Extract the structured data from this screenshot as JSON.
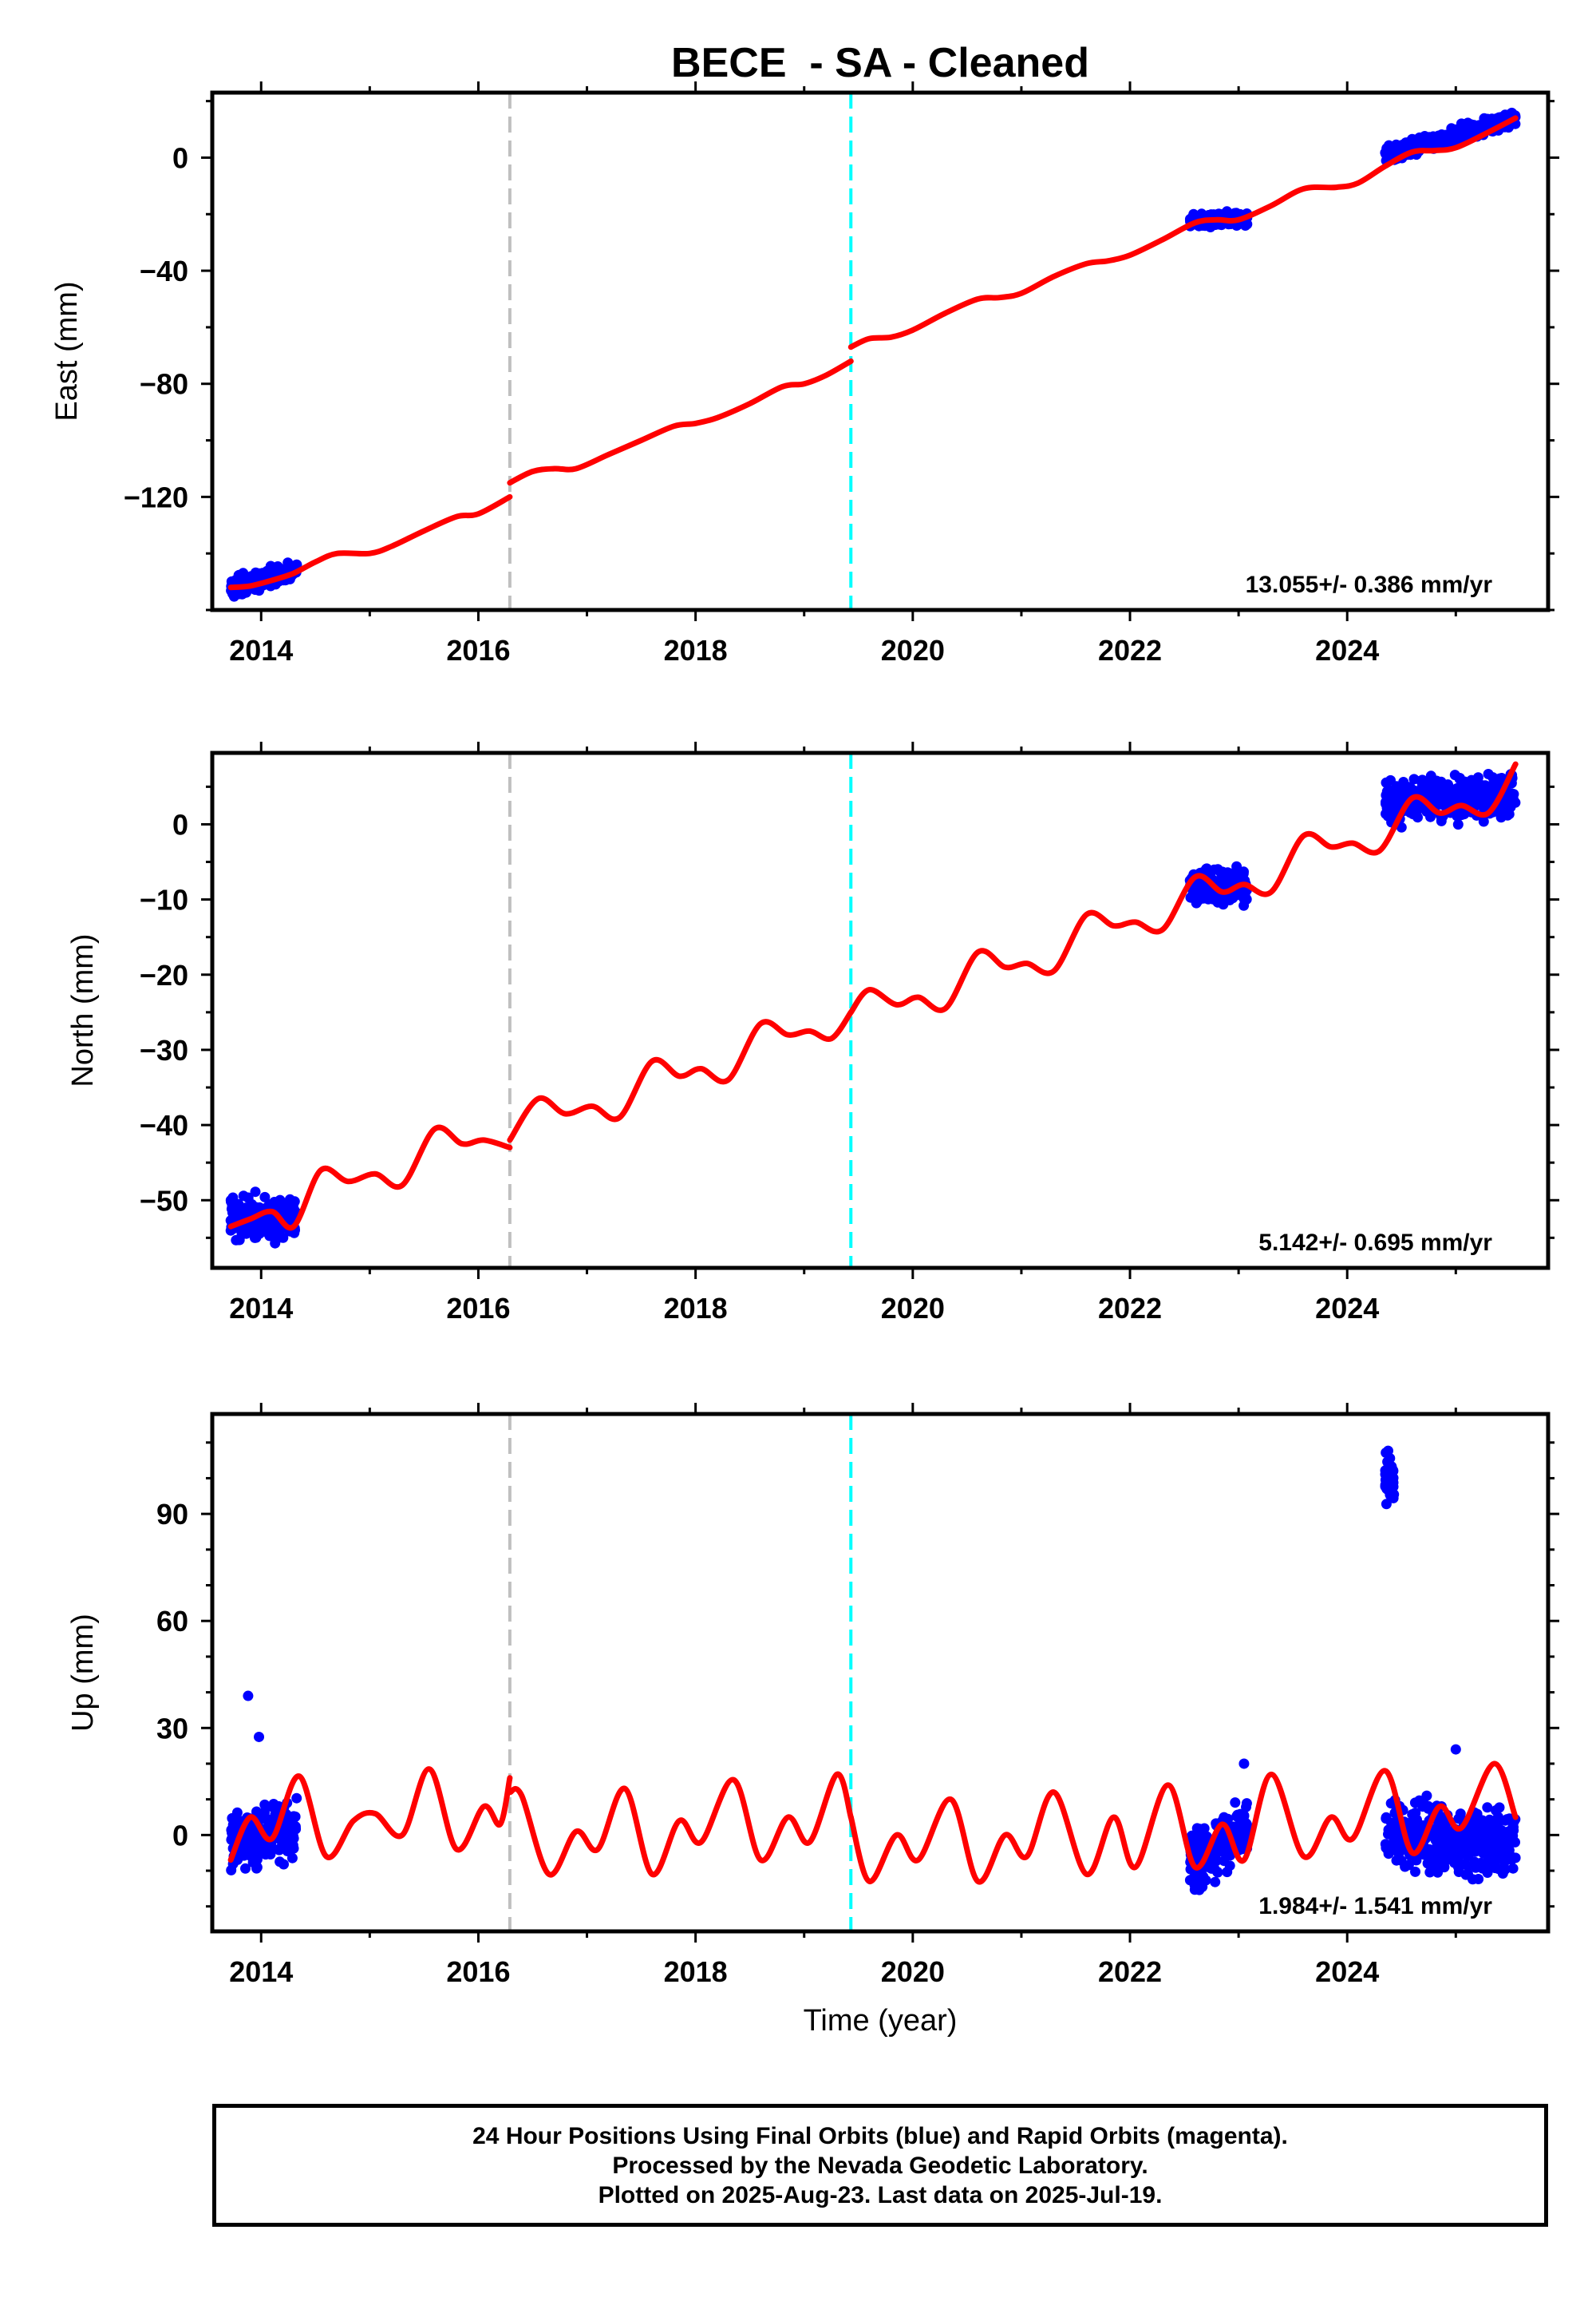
{
  "title": "BECE  - SA - Cleaned",
  "xlabel": "Time (year)",
  "footer": {
    "line1": "24 Hour Positions Using Final Orbits (blue) and Rapid Orbits (magenta).",
    "line2": "Processed by the Nevada Geodetic Laboratory.",
    "line3": "Plotted on 2025-Aug-23. Last data on 2025-Jul-19."
  },
  "colors": {
    "data": "#0000ff",
    "model": "#ff0000",
    "step_gray": "#c0c0c0",
    "step_cyan": "#00ffff"
  },
  "chart_data": [
    {
      "type": "scatter",
      "component": "East",
      "ylabel": "East (mm)",
      "xlim": [
        2013.55,
        2025.85
      ],
      "ylim": [
        -160,
        23
      ],
      "xticks": [
        2014,
        2016,
        2018,
        2020,
        2022,
        2024
      ],
      "yticks": [
        0,
        -40,
        -80,
        -120
      ],
      "rate_label": "13.055+/- 0.386 mm/yr",
      "step_lines": [
        {
          "x": 2016.29,
          "color": "gray"
        },
        {
          "x": 2019.43,
          "color": "cyan"
        }
      ],
      "data_segments": [
        {
          "x0": 2013.72,
          "x1": 2014.33,
          "y0": -152,
          "y1": -146,
          "spread": 3
        },
        {
          "x0": 2022.55,
          "x1": 2023.08,
          "y0": -22.5,
          "y1": -21.5,
          "spread": 2
        },
        {
          "x0": 2024.35,
          "x1": 2025.55,
          "y0": 1,
          "y1": 14,
          "spread": 2.5
        }
      ],
      "model_segments": [
        [
          [
            2013.72,
            -152
          ],
          [
            2013.9,
            -151.5
          ],
          [
            2014.1,
            -149.5
          ],
          [
            2014.3,
            -147
          ],
          [
            2014.5,
            -143
          ],
          [
            2014.7,
            -140
          ],
          [
            2015.0,
            -140
          ],
          [
            2015.2,
            -137.5
          ],
          [
            2015.5,
            -132
          ],
          [
            2015.8,
            -127
          ],
          [
            2016.0,
            -126
          ],
          [
            2016.29,
            -120
          ]
        ],
        [
          [
            2016.29,
            -115
          ],
          [
            2016.5,
            -111
          ],
          [
            2016.7,
            -110
          ],
          [
            2016.9,
            -110
          ],
          [
            2017.2,
            -105
          ],
          [
            2017.5,
            -100
          ],
          [
            2017.8,
            -95
          ],
          [
            2018.0,
            -94
          ],
          [
            2018.2,
            -92
          ],
          [
            2018.5,
            -87
          ],
          [
            2018.8,
            -81
          ],
          [
            2019.0,
            -80
          ],
          [
            2019.2,
            -77
          ],
          [
            2019.43,
            -72
          ]
        ],
        [
          [
            2019.43,
            -67
          ],
          [
            2019.6,
            -64
          ],
          [
            2019.8,
            -63.5
          ],
          [
            2020.0,
            -61
          ],
          [
            2020.3,
            -55
          ],
          [
            2020.6,
            -50
          ],
          [
            2020.8,
            -49.5
          ],
          [
            2021.0,
            -48
          ],
          [
            2021.3,
            -42
          ],
          [
            2021.6,
            -37.5
          ],
          [
            2021.8,
            -36.5
          ],
          [
            2022.0,
            -34.5
          ],
          [
            2022.3,
            -29
          ],
          [
            2022.6,
            -23
          ],
          [
            2022.8,
            -22
          ],
          [
            2023.0,
            -22
          ],
          [
            2023.3,
            -17
          ],
          [
            2023.6,
            -11
          ],
          [
            2023.9,
            -10.5
          ],
          [
            2024.1,
            -9
          ],
          [
            2024.35,
            -3
          ],
          [
            2024.6,
            2
          ],
          [
            2024.8,
            2.5
          ],
          [
            2025.0,
            3.5
          ],
          [
            2025.3,
            9
          ],
          [
            2025.55,
            14
          ]
        ]
      ]
    },
    {
      "type": "scatter",
      "component": "North",
      "ylabel": "North (mm)",
      "xlim": [
        2013.55,
        2025.85
      ],
      "ylim": [
        -59,
        9.5
      ],
      "xticks": [
        2014,
        2016,
        2018,
        2020,
        2022,
        2024
      ],
      "yticks": [
        0,
        -10,
        -20,
        -30,
        -40,
        -50
      ],
      "rate_label": "5.142+/- 0.695 mm/yr",
      "step_lines": [
        {
          "x": 2016.29,
          "color": "gray"
        },
        {
          "x": 2019.43,
          "color": "cyan"
        }
      ],
      "data_segments": [
        {
          "x0": 2013.72,
          "x1": 2014.33,
          "y0": -52.5,
          "y1": -52,
          "spread": 2.5
        },
        {
          "x0": 2022.55,
          "x1": 2023.08,
          "y0": -8,
          "y1": -8,
          "spread": 2
        },
        {
          "x0": 2024.35,
          "x1": 2025.55,
          "y0": 3,
          "y1": 4,
          "spread": 2.5
        }
      ],
      "model_segments": [
        [
          [
            2013.72,
            -53.5
          ],
          [
            2013.9,
            -52.5
          ],
          [
            2014.1,
            -51.5
          ],
          [
            2014.3,
            -53.5
          ],
          [
            2014.55,
            -46
          ],
          [
            2014.8,
            -47.5
          ],
          [
            2015.05,
            -46.5
          ],
          [
            2015.3,
            -48
          ],
          [
            2015.6,
            -40.5
          ],
          [
            2015.85,
            -42.5
          ],
          [
            2016.05,
            -42
          ],
          [
            2016.29,
            -43
          ]
        ],
        [
          [
            2016.29,
            -42
          ],
          [
            2016.55,
            -36.5
          ],
          [
            2016.8,
            -38.5
          ],
          [
            2017.05,
            -37.5
          ],
          [
            2017.3,
            -39
          ],
          [
            2017.6,
            -31.5
          ],
          [
            2017.85,
            -33.5
          ],
          [
            2018.05,
            -32.5
          ],
          [
            2018.3,
            -34
          ],
          [
            2018.6,
            -26.5
          ],
          [
            2018.85,
            -28
          ],
          [
            2019.05,
            -27.5
          ],
          [
            2019.25,
            -28.5
          ],
          [
            2019.43,
            -25
          ]
        ],
        [
          [
            2019.43,
            -25
          ],
          [
            2019.6,
            -22
          ],
          [
            2019.85,
            -24
          ],
          [
            2020.05,
            -23
          ],
          [
            2020.3,
            -24.5
          ],
          [
            2020.6,
            -17
          ],
          [
            2020.85,
            -19
          ],
          [
            2021.05,
            -18.5
          ],
          [
            2021.3,
            -19.5
          ],
          [
            2021.6,
            -12
          ],
          [
            2021.85,
            -13.5
          ],
          [
            2022.05,
            -13
          ],
          [
            2022.3,
            -14
          ],
          [
            2022.6,
            -7
          ],
          [
            2022.85,
            -9
          ],
          [
            2023.05,
            -8
          ],
          [
            2023.3,
            -9
          ],
          [
            2023.6,
            -1.5
          ],
          [
            2023.85,
            -3
          ],
          [
            2024.05,
            -2.5
          ],
          [
            2024.3,
            -3.5
          ],
          [
            2024.6,
            3.5
          ],
          [
            2024.85,
            1.5
          ],
          [
            2025.05,
            2.5
          ],
          [
            2025.3,
            1.5
          ],
          [
            2025.55,
            8
          ]
        ]
      ]
    },
    {
      "type": "scatter",
      "component": "Up",
      "ylabel": "Up (mm)",
      "xlim": [
        2013.55,
        2025.85
      ],
      "ylim": [
        -27,
        118
      ],
      "xticks": [
        2014,
        2016,
        2018,
        2020,
        2022,
        2024
      ],
      "yticks": [
        0,
        30,
        60,
        90
      ],
      "rate_label": "1.984+/- 1.541 mm/yr",
      "step_lines": [
        {
          "x": 2016.29,
          "color": "gray"
        },
        {
          "x": 2019.43,
          "color": "cyan"
        }
      ],
      "data_segments": [
        {
          "x0": 2013.72,
          "x1": 2014.33,
          "y0": -2,
          "y1": 2,
          "spread": 7
        },
        {
          "x0": 2022.55,
          "x1": 2023.08,
          "y0": -8,
          "y1": 2,
          "spread": 8
        },
        {
          "x0": 2024.35,
          "x1": 2025.55,
          "y0": 0,
          "y1": -3,
          "spread": 8
        },
        {
          "x0": 2024.35,
          "x1": 2024.43,
          "y0": 100,
          "y1": 100,
          "spread": 6
        }
      ],
      "outliers": [
        [
          2013.88,
          39
        ],
        [
          2013.98,
          27.5
        ],
        [
          2023.05,
          20
        ],
        [
          2025.0,
          24
        ]
      ],
      "model_segments": [
        [
          [
            2013.72,
            -7
          ],
          [
            2013.9,
            5
          ],
          [
            2014.1,
            -1
          ],
          [
            2014.35,
            16.5
          ],
          [
            2014.6,
            -6
          ],
          [
            2014.85,
            4
          ],
          [
            2015.05,
            6
          ],
          [
            2015.3,
            0
          ],
          [
            2015.55,
            18.5
          ],
          [
            2015.8,
            -4
          ],
          [
            2016.05,
            8
          ],
          [
            2016.2,
            3
          ],
          [
            2016.29,
            16
          ]
        ],
        [
          [
            2016.29,
            12
          ],
          [
            2016.4,
            11
          ],
          [
            2016.65,
            -11
          ],
          [
            2016.9,
            1
          ],
          [
            2017.1,
            -4
          ],
          [
            2017.35,
            13
          ],
          [
            2017.6,
            -11
          ],
          [
            2017.85,
            4
          ],
          [
            2018.05,
            -2
          ],
          [
            2018.35,
            15.5
          ],
          [
            2018.6,
            -7
          ],
          [
            2018.85,
            5
          ],
          [
            2019.05,
            -2
          ],
          [
            2019.3,
            17
          ],
          [
            2019.43,
            5
          ]
        ],
        [
          [
            2019.43,
            5
          ],
          [
            2019.6,
            -13
          ],
          [
            2019.85,
            0
          ],
          [
            2020.05,
            -7
          ],
          [
            2020.35,
            10
          ],
          [
            2020.6,
            -13
          ],
          [
            2020.85,
            0
          ],
          [
            2021.05,
            -6
          ],
          [
            2021.3,
            12
          ],
          [
            2021.6,
            -11
          ],
          [
            2021.85,
            5
          ],
          [
            2022.05,
            -9
          ],
          [
            2022.35,
            14
          ],
          [
            2022.6,
            -9
          ],
          [
            2022.85,
            3
          ],
          [
            2023.05,
            -7
          ],
          [
            2023.3,
            17
          ],
          [
            2023.6,
            -6
          ],
          [
            2023.85,
            5
          ],
          [
            2024.05,
            -1
          ],
          [
            2024.35,
            18
          ],
          [
            2024.6,
            -5
          ],
          [
            2024.85,
            8
          ],
          [
            2025.05,
            2
          ],
          [
            2025.35,
            20
          ],
          [
            2025.55,
            5
          ]
        ]
      ]
    }
  ]
}
